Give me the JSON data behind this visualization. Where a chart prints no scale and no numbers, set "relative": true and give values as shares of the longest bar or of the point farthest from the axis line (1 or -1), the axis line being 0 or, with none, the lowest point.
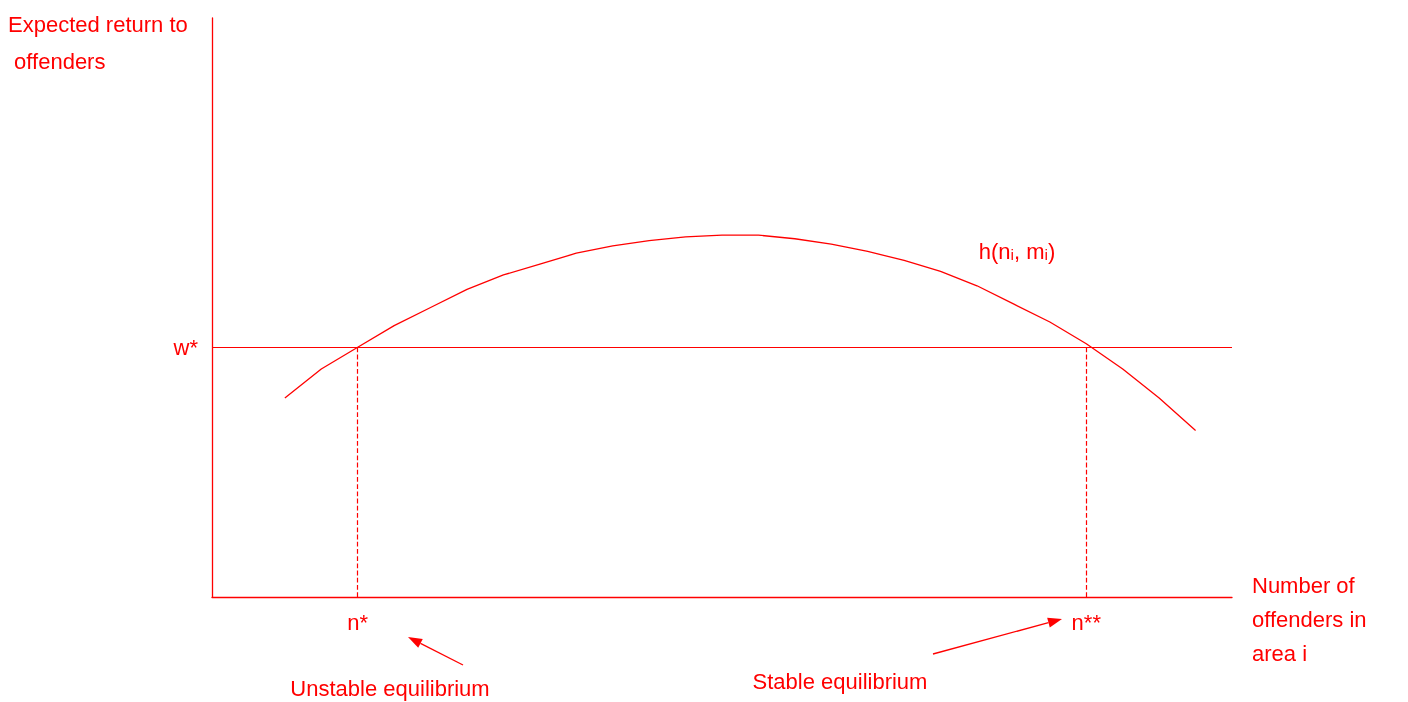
{
  "chart_data": {
    "type": "line",
    "relative": true,
    "xlabel": "Number of offenders in area i",
    "categories": [
      null,
      null,
      null,
      null,
      "n*",
      null,
      null,
      null,
      null,
      null,
      null,
      null,
      null,
      null,
      null,
      null,
      null,
      null,
      null,
      null,
      null,
      null,
      null,
      null,
      "n**",
      null,
      null,
      null,
      null
    ],
    "series": [
      {
        "name": "h(nᵢ, mᵢ)",
        "color": "#ff0000",
        "values": [
          null,
          null,
          0.55,
          0.63,
          0.69,
          0.75,
          0.8,
          0.85,
          0.89,
          0.92,
          0.95,
          0.97,
          0.985,
          0.995,
          1.0,
          1.0,
          0.99,
          0.975,
          0.955,
          0.93,
          0.9,
          0.86,
          0.81,
          0.76,
          0.7,
          0.63,
          0.55,
          0.46,
          null
        ]
      }
    ],
    "ref_lines": [
      {
        "axis": "y",
        "value": 0.69,
        "label": "w*",
        "color": "#ff0000",
        "line_style": "solid"
      },
      {
        "axis": "x",
        "value": "n*",
        "label": null,
        "color": "#ff0000",
        "line_style": "dashed"
      },
      {
        "axis": "x",
        "value": "n**",
        "label": null,
        "color": "#ff0000",
        "line_style": "dashed"
      }
    ],
    "annotations": [
      "Expected return to offenders",
      "Unstable equilibrium",
      "Stable equilibrium"
    ],
    "legend": false,
    "grid": false,
    "marker": "none",
    "line_style": "solid"
  }
}
